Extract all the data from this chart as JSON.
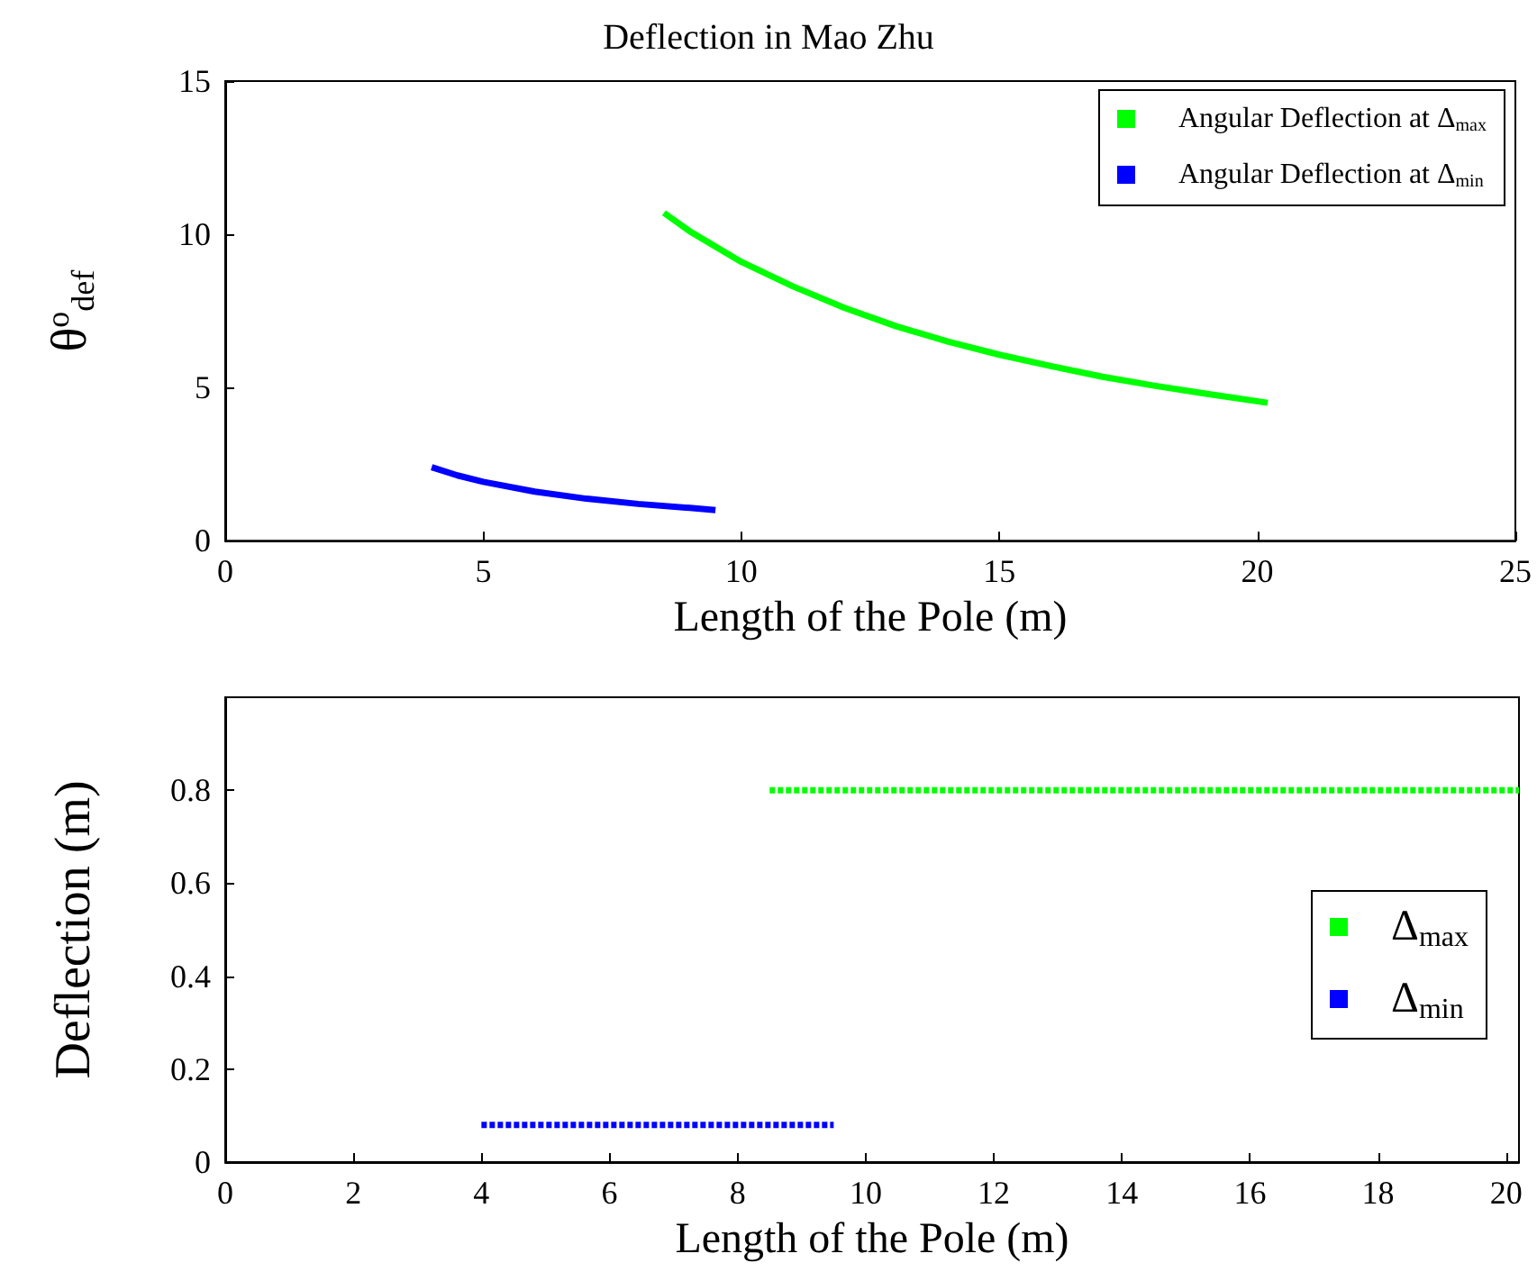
{
  "chart_data": [
    {
      "type": "line",
      "title": "Deflection in Mao Zhu",
      "xlabel": "Length of the Pole (m)",
      "ylabel": "θ$^{o}$$_{def}$",
      "xlim": [
        0,
        25
      ],
      "ylim": [
        0,
        15
      ],
      "xticks": [
        0,
        5,
        10,
        15,
        20,
        25
      ],
      "yticks": [
        0,
        5,
        10,
        15
      ],
      "grid": false,
      "legend": "top right",
      "line_style": "solid",
      "series": [
        {
          "name": "Angular Deflection at Δ$_{max}$",
          "color": "#00ff00",
          "x": [
            8.5,
            9,
            10,
            11,
            12,
            13,
            14,
            15,
            16,
            17,
            18,
            19,
            20.2
          ],
          "values": [
            10.7,
            10.1,
            9.1,
            8.3,
            7.6,
            7.0,
            6.5,
            6.07,
            5.7,
            5.35,
            5.06,
            4.8,
            4.5
          ]
        },
        {
          "name": "Angular Deflection at Δ$_{min}$",
          "color": "#0000ff",
          "x": [
            4,
            4.5,
            5,
            6,
            7,
            8,
            9,
            9.5
          ],
          "values": [
            2.4,
            2.13,
            1.92,
            1.6,
            1.37,
            1.2,
            1.07,
            1.0
          ]
        }
      ]
    },
    {
      "type": "line",
      "xlabel": "Length of the Pole (m)",
      "ylabel": "Deflection (m)",
      "xlim": [
        0,
        20.2
      ],
      "ylim": [
        0,
        1
      ],
      "xticks": [
        0,
        2,
        4,
        6,
        8,
        10,
        12,
        14,
        16,
        18,
        20
      ],
      "yticks": [
        0,
        0.2,
        0.4,
        0.6,
        0.8
      ],
      "grid": false,
      "legend": "right",
      "line_style": "dashed",
      "series": [
        {
          "name": "Δ$_{max}$",
          "color": "#00ff00",
          "x": [
            8.5,
            20.2
          ],
          "values": [
            0.8,
            0.8
          ]
        },
        {
          "name": "Δ$_{min}$",
          "color": "#0000ff",
          "x": [
            4,
            9.5
          ],
          "values": [
            0.08,
            0.08
          ]
        }
      ]
    }
  ]
}
